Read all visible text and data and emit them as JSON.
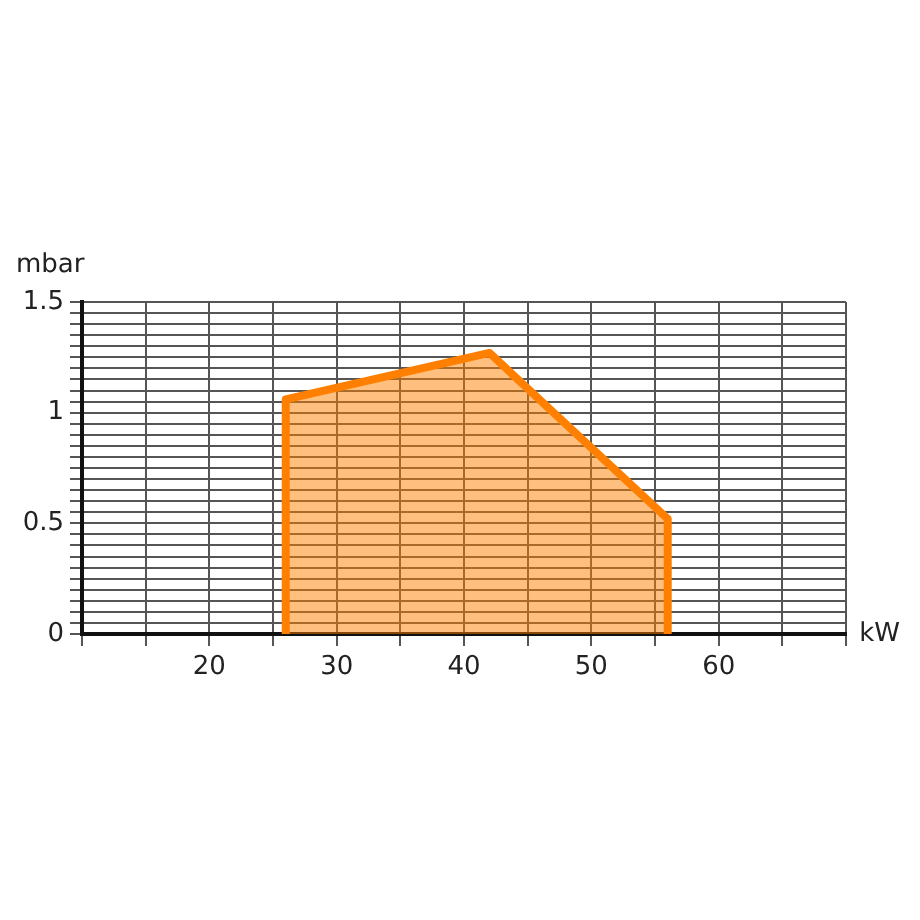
{
  "chart_data": {
    "type": "area",
    "xlabel": "kW",
    "ylabel": "mbar",
    "x": [
      26,
      26,
      42,
      56,
      56
    ],
    "series": [
      {
        "color": "#ff8000",
        "values": [
          0,
          1.06,
          1.27,
          0.52,
          0
        ]
      }
    ],
    "xlim": [
      10,
      70
    ],
    "xticks": [
      {
        "value": 10,
        "label": null
      },
      {
        "value": 15,
        "label": null
      },
      20,
      {
        "value": 25,
        "label": null
      },
      30,
      {
        "value": 35,
        "label": null
      },
      40,
      {
        "value": 45,
        "label": null
      },
      50,
      {
        "value": 55,
        "label": null
      },
      60,
      {
        "value": 65,
        "label": null
      },
      {
        "value": 70,
        "label": null
      }
    ],
    "ylim": [
      0,
      1.5
    ],
    "yticks": [
      0,
      {
        "value": 0.05,
        "label": null
      },
      {
        "value": 0.1,
        "label": null
      },
      {
        "value": 0.15,
        "label": null
      },
      {
        "value": 0.2,
        "label": null
      },
      {
        "value": 0.25,
        "label": null
      },
      {
        "value": 0.3,
        "label": null
      },
      {
        "value": 0.35,
        "label": null
      },
      {
        "value": 0.4,
        "label": null
      },
      {
        "value": 0.45,
        "label": null
      },
      0.5,
      {
        "value": 0.55,
        "label": null
      },
      {
        "value": 0.6,
        "label": null
      },
      {
        "value": 0.65,
        "label": null
      },
      {
        "value": 0.7,
        "label": null
      },
      {
        "value": 0.75,
        "label": null
      },
      {
        "value": 0.8,
        "label": null
      },
      {
        "value": 0.85,
        "label": null
      },
      {
        "value": 0.9,
        "label": null
      },
      {
        "value": 0.95,
        "label": null
      },
      1,
      {
        "value": 1.05,
        "label": null
      },
      {
        "value": 1.1,
        "label": null
      },
      {
        "value": 1.15,
        "label": null
      },
      {
        "value": 1.2,
        "label": null
      },
      {
        "value": 1.25,
        "label": null
      },
      {
        "value": 1.3,
        "label": null
      },
      {
        "value": 1.35,
        "label": null
      },
      {
        "value": 1.4,
        "label": null
      },
      {
        "value": 1.45,
        "label": null
      },
      1.5
    ],
    "grid": true,
    "legend": false,
    "marker": "none",
    "line_style": "solid"
  }
}
